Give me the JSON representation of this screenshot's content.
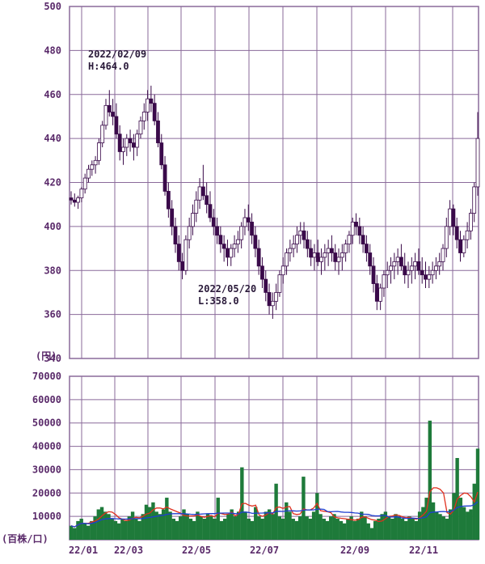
{
  "chart_data": [
    {
      "type": "candlestick",
      "ylim": [
        340,
        500
      ],
      "y_ticks": [
        "500",
        "480",
        "460",
        "440",
        "420",
        "400",
        "380",
        "360",
        "340"
      ],
      "y_unit": "(円)",
      "x_ticks": [
        "22/01",
        "22/03",
        "22/05",
        "22/07",
        "22/09",
        "22/11"
      ],
      "grid": true,
      "annotations": [
        {
          "date": "2022/02/09",
          "label": "H:464.0",
          "value": 464.0
        },
        {
          "date": "2022/05/20",
          "label": "L:358.0",
          "value": 358.0
        }
      ],
      "series": [
        {
          "values": [
            [
              413,
              416,
              410,
              412
            ],
            [
              412,
              415,
              409,
              411
            ],
            [
              411,
              414,
              408,
              413
            ],
            [
              413,
              418,
              411,
              417
            ],
            [
              417,
              424,
              415,
              422
            ],
            [
              422,
              428,
              420,
              426
            ],
            [
              426,
              430,
              423,
              428
            ],
            [
              428,
              432,
              424,
              430
            ],
            [
              430,
              440,
              428,
              438
            ],
            [
              438,
              448,
              436,
              446
            ],
            [
              446,
              458,
              444,
              455
            ],
            [
              455,
              462,
              450,
              452
            ],
            [
              452,
              458,
              446,
              450
            ],
            [
              450,
              456,
              440,
              442
            ],
            [
              442,
              446,
              430,
              434
            ],
            [
              434,
              440,
              428,
              436
            ],
            [
              436,
              442,
              432,
              440
            ],
            [
              440,
              444,
              434,
              438
            ],
            [
              438,
              442,
              430,
              436
            ],
            [
              436,
              444,
              432,
              442
            ],
            [
              442,
              450,
              440,
              448
            ],
            [
              448,
              456,
              444,
              452
            ],
            [
              452,
              462,
              448,
              458
            ],
            [
              458,
              464,
              452,
              456
            ],
            [
              456,
              460,
              446,
              448
            ],
            [
              448,
              452,
              436,
              438
            ],
            [
              438,
              442,
              426,
              428
            ],
            [
              428,
              432,
              414,
              416
            ],
            [
              416,
              420,
              404,
              408
            ],
            [
              408,
              412,
              396,
              400
            ],
            [
              400,
              404,
              388,
              392
            ],
            [
              392,
              396,
              380,
              384
            ],
            [
              384,
              388,
              376,
              380
            ],
            [
              380,
              396,
              378,
              394
            ],
            [
              394,
              404,
              390,
              400
            ],
            [
              400,
              410,
              396,
              406
            ],
            [
              406,
              416,
              402,
              412
            ],
            [
              412,
              422,
              408,
              418
            ],
            [
              418,
              428,
              412,
              414
            ],
            [
              414,
              420,
              406,
              410
            ],
            [
              410,
              416,
              402,
              404
            ],
            [
              404,
              408,
              396,
              400
            ],
            [
              400,
              404,
              392,
              396
            ],
            [
              396,
              400,
              388,
              392
            ],
            [
              392,
              396,
              384,
              390
            ],
            [
              390,
              394,
              382,
              386
            ],
            [
              386,
              392,
              382,
              390
            ],
            [
              390,
              396,
              386,
              392
            ],
            [
              392,
              398,
              388,
              394
            ],
            [
              394,
              402,
              390,
              400
            ],
            [
              400,
              408,
              396,
              404
            ],
            [
              404,
              410,
              398,
              402
            ],
            [
              402,
              406,
              392,
              396
            ],
            [
              396,
              400,
              386,
              390
            ],
            [
              390,
              394,
              378,
              382
            ],
            [
              382,
              386,
              372,
              376
            ],
            [
              376,
              380,
              366,
              370
            ],
            [
              370,
              374,
              360,
              364
            ],
            [
              364,
              370,
              358,
              366
            ],
            [
              366,
              374,
              362,
              370
            ],
            [
              370,
              380,
              368,
              378
            ],
            [
              378,
              386,
              374,
              382
            ],
            [
              382,
              390,
              378,
              388
            ],
            [
              388,
              394,
              384,
              390
            ],
            [
              390,
              396,
              386,
              392
            ],
            [
              392,
              400,
              388,
              396
            ],
            [
              396,
              402,
              392,
              398
            ],
            [
              398,
              402,
              390,
              394
            ],
            [
              394,
              398,
              386,
              390
            ],
            [
              390,
              394,
              382,
              386
            ],
            [
              386,
              392,
              380,
              388
            ],
            [
              388,
              394,
              382,
              384
            ],
            [
              384,
              390,
              378,
              386
            ],
            [
              386,
              392,
              380,
              388
            ],
            [
              388,
              394,
              382,
              390
            ],
            [
              390,
              396,
              384,
              388
            ],
            [
              388,
              392,
              380,
              384
            ],
            [
              384,
              390,
              378,
              386
            ],
            [
              386,
              392,
              380,
              388
            ],
            [
              388,
              394,
              384,
              392
            ],
            [
              392,
              398,
              388,
              396
            ],
            [
              396,
              404,
              392,
              402
            ],
            [
              402,
              406,
              396,
              400
            ],
            [
              400,
              404,
              392,
              396
            ],
            [
              396,
              400,
              388,
              392
            ],
            [
              392,
              396,
              384,
              388
            ],
            [
              388,
              392,
              378,
              382
            ],
            [
              382,
              386,
              370,
              374
            ],
            [
              374,
              378,
              362,
              366
            ],
            [
              366,
              374,
              362,
              372
            ],
            [
              372,
              380,
              368,
              378
            ],
            [
              378,
              384,
              372,
              380
            ],
            [
              380,
              386,
              374,
              382
            ],
            [
              382,
              388,
              376,
              384
            ],
            [
              384,
              390,
              378,
              386
            ],
            [
              386,
              392,
              380,
              382
            ],
            [
              382,
              388,
              374,
              378
            ],
            [
              378,
              384,
              372,
              380
            ],
            [
              380,
              386,
              374,
              382
            ],
            [
              382,
              388,
              376,
              384
            ],
            [
              384,
              390,
              378,
              380
            ],
            [
              380,
              386,
              374,
              378
            ],
            [
              378,
              384,
              372,
              376
            ],
            [
              376,
              382,
              372,
              378
            ],
            [
              378,
              384,
              374,
              380
            ],
            [
              380,
              386,
              376,
              382
            ],
            [
              382,
              388,
              378,
              384
            ],
            [
              384,
              392,
              380,
              390
            ],
            [
              390,
              404,
              386,
              400
            ],
            [
              400,
              412,
              396,
              408
            ],
            [
              408,
              410,
              396,
              400
            ],
            [
              400,
              404,
              390,
              394
            ],
            [
              394,
              398,
              384,
              388
            ],
            [
              388,
              396,
              386,
              394
            ],
            [
              394,
              402,
              390,
              398
            ],
            [
              398,
              408,
              394,
              406
            ],
            [
              406,
              420,
              402,
              418
            ],
            [
              418,
              452,
              414,
              440
            ]
          ]
        }
      ]
    },
    {
      "type": "bar",
      "ylim": [
        0,
        70000
      ],
      "y_ticks": [
        "70000",
        "60000",
        "50000",
        "40000",
        "30000",
        "20000",
        "10000"
      ],
      "y_unit": "(百株/口)",
      "x_ticks": [
        "22/01",
        "22/03",
        "22/05",
        "22/07",
        "22/09",
        "22/11"
      ],
      "grid": true,
      "series": [
        {
          "values": [
            6000,
            5000,
            8000,
            9000,
            7000,
            6000,
            8000,
            10000,
            13000,
            14000,
            12000,
            11000,
            9000,
            8000,
            7000,
            9000,
            8000,
            10000,
            12000,
            9000,
            8000,
            11000,
            15000,
            14000,
            16000,
            12000,
            11000,
            13000,
            18000,
            12000,
            9000,
            8000,
            10000,
            13000,
            11000,
            9000,
            8000,
            12000,
            10000,
            9000,
            11000,
            10000,
            9000,
            18000,
            8000,
            9000,
            11000,
            13000,
            10000,
            12000,
            31000,
            12000,
            9000,
            8000,
            14000,
            10000,
            9000,
            12000,
            13000,
            11000,
            24000,
            10000,
            9000,
            16000,
            12000,
            9000,
            8000,
            10000,
            27000,
            10000,
            9000,
            12000,
            20000,
            11000,
            9000,
            8000,
            10000,
            11000,
            9000,
            8000,
            7000,
            9000,
            10000,
            8000,
            9000,
            12000,
            10000,
            7000,
            5000,
            8000,
            9000,
            11000,
            12000,
            10000,
            9000,
            11000,
            10000,
            9000,
            8000,
            10000,
            9000,
            8000,
            12000,
            14000,
            18000,
            51000,
            16000,
            12000,
            11000,
            10000,
            9000,
            13000,
            20000,
            35000,
            18000,
            14000,
            12000,
            13000,
            24000,
            39000
          ]
        }
      ]
    }
  ]
}
